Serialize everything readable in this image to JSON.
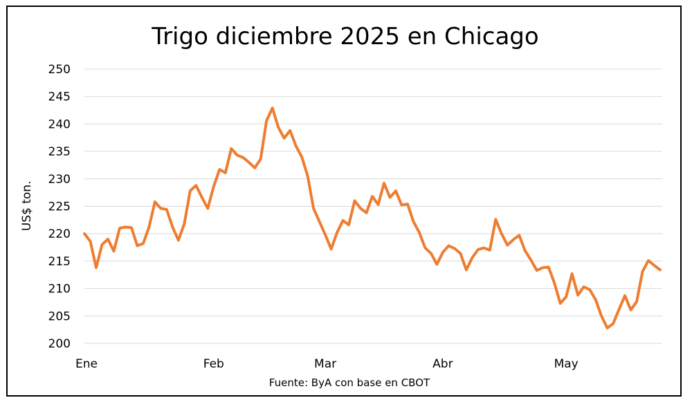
{
  "chart_data": {
    "type": "line",
    "title": "Trigo diciembre 2025 en Chicago",
    "ylabel": "US$ ton.",
    "source": "Fuente: ByA con base en CBOT",
    "ylim": [
      200,
      250
    ],
    "yticks": [
      200,
      205,
      210,
      215,
      220,
      225,
      230,
      235,
      240,
      245,
      250
    ],
    "grid": true,
    "xticks": [
      {
        "label": "Ene",
        "index": 0
      },
      {
        "label": "Feb",
        "index": 22
      },
      {
        "label": "Mar",
        "index": 41
      },
      {
        "label": "Abr",
        "index": 61
      },
      {
        "label": "May",
        "index": 82
      }
    ],
    "series": [
      {
        "color": "#ed7d31",
        "values": [
          220.0,
          218.6,
          213.8,
          218.0,
          219.0,
          216.8,
          221.0,
          221.2,
          221.1,
          217.8,
          218.2,
          221.2,
          225.8,
          224.6,
          224.4,
          221.2,
          218.8,
          221.8,
          227.8,
          228.8,
          226.6,
          224.6,
          228.6,
          231.7,
          231.1,
          235.5,
          234.3,
          233.9,
          233.0,
          232.0,
          233.6,
          240.6,
          242.9,
          239.4,
          237.4,
          238.8,
          236.0,
          234.0,
          230.5,
          224.6,
          222.2,
          219.8,
          217.2,
          220.2,
          222.4,
          221.6,
          226.0,
          224.6,
          223.8,
          226.8,
          225.3,
          229.2,
          226.6,
          227.8,
          225.2,
          225.4,
          222.2,
          220.2,
          217.4,
          216.4,
          214.4,
          216.6,
          217.8,
          217.3,
          216.4,
          213.4,
          215.6,
          217.1,
          217.4,
          217.0,
          222.6,
          220.0,
          217.9,
          218.9,
          219.7,
          216.9,
          215.2,
          213.3,
          213.8,
          213.9,
          211.0,
          207.3,
          208.5,
          212.7,
          208.8,
          210.3,
          209.8,
          208.0,
          205.0,
          202.8,
          203.6,
          206.2,
          208.7,
          206.1,
          207.6,
          213.1,
          215.1,
          214.2,
          213.4
        ]
      }
    ]
  }
}
